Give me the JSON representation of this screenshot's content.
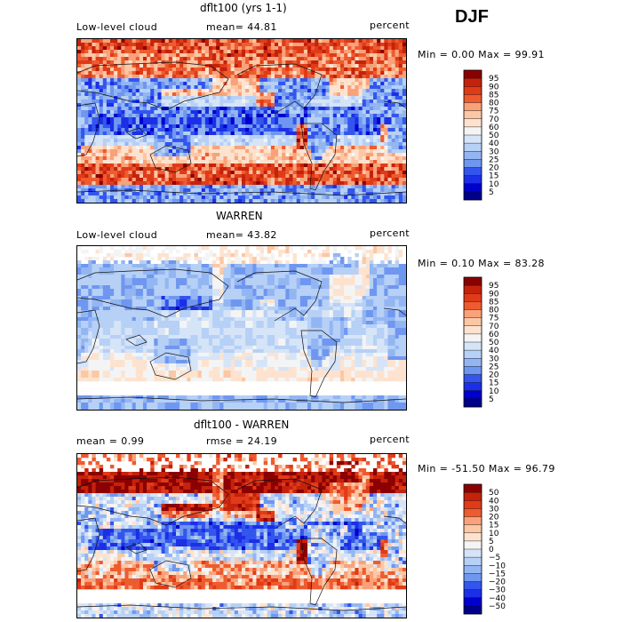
{
  "season": "DJF",
  "palette": {
    "abs": [
      "#00008b",
      "#0000cd",
      "#1c2fe6",
      "#3355ee",
      "#4f79ee",
      "#6f97f0",
      "#93b6f3",
      "#b6d0f6",
      "#d6e4f8",
      "#f4f4f4",
      "#fde3cf",
      "#fcc7a4",
      "#f9a27a",
      "#f57e53",
      "#ee5b2f",
      "#e03b19",
      "#c5220c",
      "#8b0000"
    ],
    "diff": [
      "#00008b",
      "#0000cd",
      "#1c2fe6",
      "#3355ee",
      "#4f79ee",
      "#6f97f0",
      "#93b6f3",
      "#b6d0f6",
      "#d6e4f8",
      "#f4f4f4",
      "#fde3cf",
      "#fcc7a4",
      "#f9a27a",
      "#f57e53",
      "#ee5b2f",
      "#e03b19",
      "#c5220c",
      "#8b0000"
    ]
  },
  "panels": [
    {
      "title": "dflt100 (yrs 1-1)",
      "left_label": "Low-level cloud",
      "center_label": "mean=  44.81",
      "right_label": "percent",
      "minmax": "Min =    0.00 Max =  99.91",
      "map": "model",
      "colorbar_ticks": [
        "95",
        "90",
        "85",
        "80",
        "75",
        "70",
        "60",
        "50",
        "40",
        "30",
        "25",
        "20",
        "15",
        "10",
        "5"
      ]
    },
    {
      "title": "WARREN",
      "left_label": "Low-level cloud",
      "center_label": "mean=  43.82",
      "right_label": "percent",
      "minmax": "Min =    0.10 Max =  83.28",
      "map": "obs",
      "colorbar_ticks": [
        "95",
        "90",
        "85",
        "80",
        "75",
        "70",
        "60",
        "50",
        "40",
        "30",
        "25",
        "20",
        "15",
        "10",
        "5"
      ]
    },
    {
      "title": "dflt100 - WARREN",
      "left_label": "mean =    0.99",
      "center_label": "rmse =  24.19",
      "right_label": "percent",
      "minmax": "Min = -51.50 Max =  96.79",
      "map": "diff",
      "colorbar_ticks": [
        "50",
        "40",
        "30",
        "20",
        "15",
        "10",
        "5",
        "0",
        "−5",
        "−10",
        "−15",
        "−20",
        "−30",
        "−40",
        "−50"
      ]
    }
  ],
  "chart_data": [
    {
      "type": "heatmap",
      "title": "dflt100 (yrs 1-1)",
      "variable": "Low-level cloud",
      "units": "percent",
      "mean": 44.81,
      "min": 0.0,
      "max": 99.91,
      "contour_levels": [
        5,
        10,
        15,
        20,
        25,
        30,
        40,
        50,
        60,
        70,
        75,
        80,
        85,
        90,
        95
      ]
    },
    {
      "type": "heatmap",
      "title": "WARREN",
      "variable": "Low-level cloud",
      "units": "percent",
      "mean": 43.82,
      "min": 0.1,
      "max": 83.28,
      "contour_levels": [
        5,
        10,
        15,
        20,
        25,
        30,
        40,
        50,
        60,
        70,
        75,
        80,
        85,
        90,
        95
      ]
    },
    {
      "type": "heatmap",
      "title": "dflt100 - WARREN",
      "units": "percent",
      "mean": 0.99,
      "rmse": 24.19,
      "min": -51.5,
      "max": 96.79,
      "contour_levels": [
        -50,
        -40,
        -30,
        -20,
        -15,
        -10,
        -5,
        0,
        5,
        10,
        15,
        20,
        30,
        40,
        50
      ]
    }
  ]
}
